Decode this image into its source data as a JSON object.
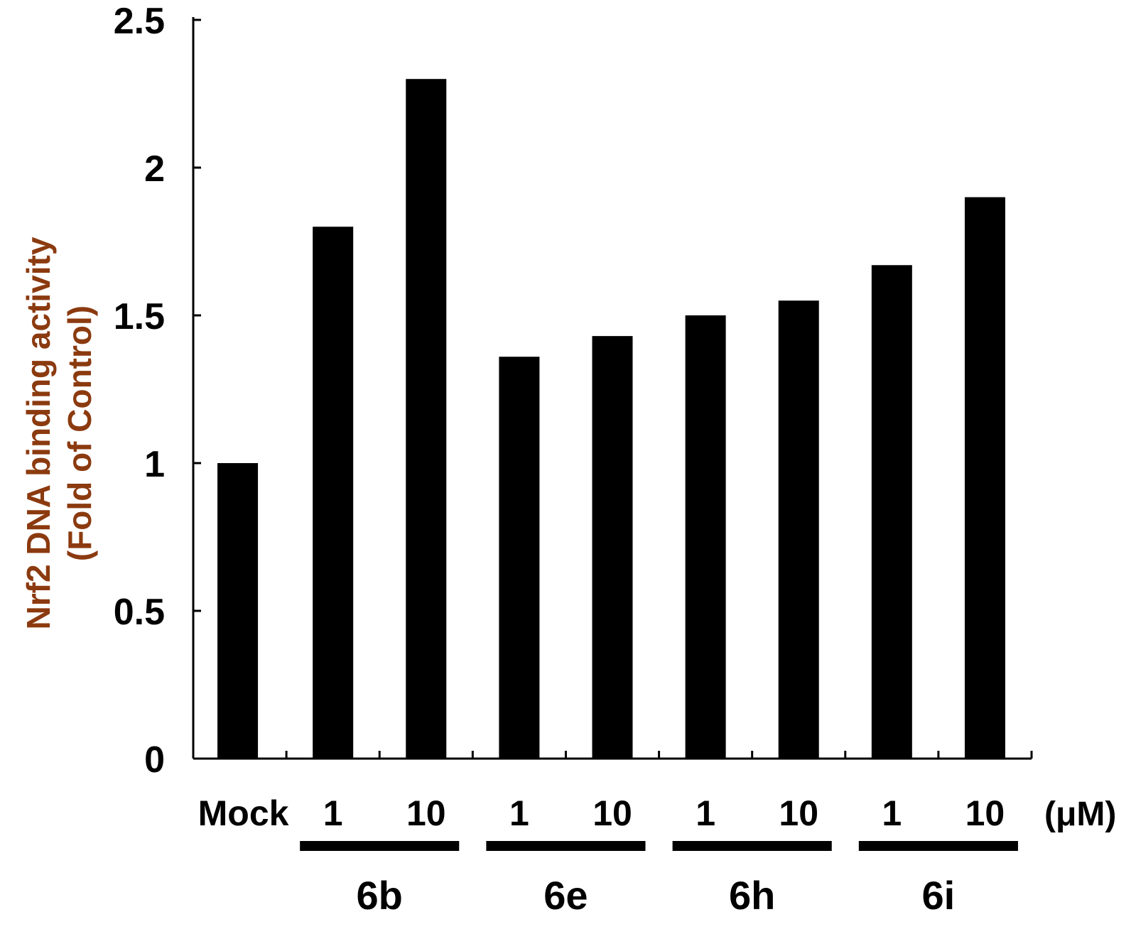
{
  "chart_data": {
    "type": "bar",
    "ylabel_lines": [
      "Nrf2 DNA binding activity",
      "(Fold of Control)"
    ],
    "ylabel_color": "#8B3A0F",
    "bar_color": "#000000",
    "ylim": [
      0,
      2.5
    ],
    "yticks": [
      "0",
      "0.5",
      "1",
      "1.5",
      "2",
      "2.5"
    ],
    "categories": [
      "Mock",
      "1",
      "10",
      "1",
      "10",
      "1",
      "10",
      "1",
      "10"
    ],
    "values": [
      1.0,
      1.8,
      2.3,
      1.36,
      1.43,
      1.5,
      1.55,
      1.67,
      1.9
    ],
    "unit_label": "(μM)",
    "groups": [
      {
        "label": "6b",
        "from": 1,
        "to": 2
      },
      {
        "label": "6e",
        "from": 3,
        "to": 4
      },
      {
        "label": "6h",
        "from": 5,
        "to": 6
      },
      {
        "label": "6i",
        "from": 7,
        "to": 8
      }
    ],
    "legend": "none",
    "grid": false
  }
}
